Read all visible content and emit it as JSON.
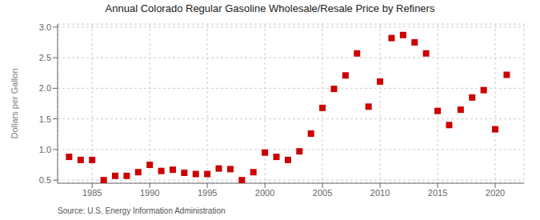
{
  "chart_data": {
    "type": "scatter",
    "title": "Annual Colorado Regular Gasoline Wholesale/Resale Price by Refiners",
    "ylabel": "Dollars per Gallon",
    "annotations": [
      "Source: U.S. Energy Information Administration"
    ],
    "x": [
      1983,
      1984,
      1985,
      1986,
      1987,
      1988,
      1989,
      1990,
      1991,
      1992,
      1993,
      1994,
      1995,
      1996,
      1997,
      1998,
      1999,
      2000,
      2001,
      2002,
      2003,
      2004,
      2005,
      2006,
      2007,
      2008,
      2009,
      2010,
      2011,
      2012,
      2013,
      2014,
      2015,
      2016,
      2017,
      2018,
      2019,
      2020,
      2021
    ],
    "values": [
      0.88,
      0.83,
      0.83,
      0.5,
      0.57,
      0.57,
      0.63,
      0.75,
      0.65,
      0.67,
      0.62,
      0.6,
      0.6,
      0.69,
      0.68,
      0.5,
      0.63,
      0.95,
      0.88,
      0.83,
      0.97,
      1.26,
      1.68,
      1.99,
      2.21,
      2.57,
      1.7,
      2.11,
      2.82,
      2.87,
      2.75,
      2.57,
      1.63,
      1.4,
      1.65,
      1.85,
      1.97,
      1.33,
      2.22
    ],
    "color": "#cc0000",
    "marker": "square",
    "xlim": [
      1982.0,
      2022.5
    ],
    "xticks": [
      1985,
      1990,
      1995,
      2000,
      2005,
      2010,
      2015,
      2020
    ],
    "ylim": [
      0.45,
      3.05
    ],
    "yticks": [
      0.5,
      {
        "value": 1.0,
        "label": "1.0"
      },
      1.5,
      {
        "value": 2.0,
        "label": "2.0"
      },
      2.5,
      {
        "value": 3.0,
        "label": "3.0"
      }
    ],
    "grid": true
  }
}
